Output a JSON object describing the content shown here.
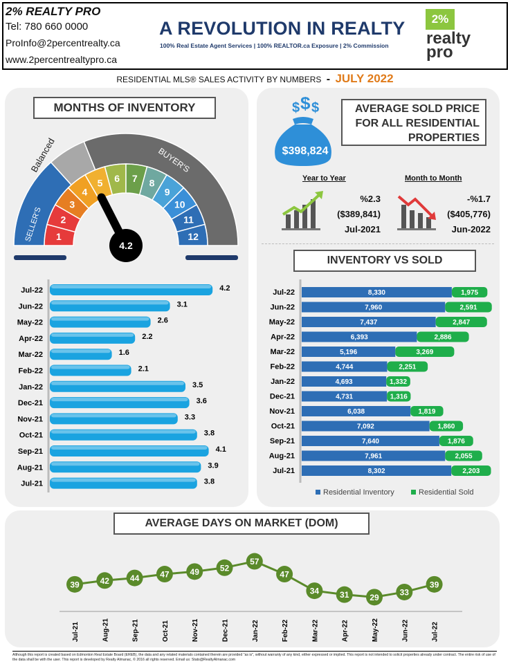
{
  "header": {
    "company": "2% REALTY PRO",
    "phone": "Tel: 780 660 0000",
    "email": "ProInfo@2percentrealty.ca",
    "website": "www.2percentrealtypro.ca",
    "headline": "A REVOLUTION IN REALTY",
    "tagline": "100% Real Estate Agent Services | 100% REALTOR.ca Exposure | 2% Commission",
    "logo_top": "2%",
    "logo_mid": "realty",
    "logo_bot": "pro"
  },
  "subtitle": {
    "text": "RESIDENTIAL MLS® SALES ACTIVITY BY NUMBERS",
    "sep": "-",
    "month": "JULY 2022"
  },
  "months_inventory": {
    "title": "MONTHS OF INVENTORY",
    "gauge_value": "4.2",
    "label_balanced": "Balanced",
    "label_buyers": "BUYER'S",
    "label_sellers": "SELLER'S",
    "segment_numbers": [
      "1",
      "2",
      "3",
      "4",
      "5",
      "6",
      "7",
      "8",
      "9",
      "10",
      "11",
      "12"
    ]
  },
  "avg_price": {
    "title_lines": [
      "AVERAGE  SOLD PRICE",
      "FOR ALL RESIDENTIAL",
      "PROPERTIES"
    ],
    "value": "$398,824",
    "yoy": {
      "label": "Year to Year",
      "pct": "%2.3",
      "prev": "($389,841)",
      "period": "Jul-2021"
    },
    "mom": {
      "label": "Month to Month",
      "pct": "-%1.7",
      "prev": "($405,776)",
      "period": "Jun-2022"
    }
  },
  "inv_sold_title": "INVENTORY VS SOLD",
  "dom_title": "AVERAGE DAYS ON MARKET (DOM)",
  "colors": {
    "navy": "#1f3a6b",
    "orange": "#e07b1a",
    "moi_bar": "#1aa3e0",
    "inventory": "#2e6eb5",
    "sold": "#1fae4b",
    "dom": "#5a8a2a"
  },
  "chart_data": [
    {
      "type": "bar",
      "orientation": "horizontal",
      "categories": [
        "Jul-22",
        "Jun-22",
        "May-22",
        "Apr-22",
        "Mar-22",
        "Feb-22",
        "Jan-22",
        "Dec-21",
        "Nov-21",
        "Oct-21",
        "Sep-21",
        "Aug-21",
        "Jul-21"
      ],
      "values": [
        4.2,
        3.1,
        2.6,
        2.2,
        1.6,
        2.1,
        3.5,
        3.6,
        3.3,
        3.8,
        4.1,
        3.9,
        3.8
      ],
      "labels": [
        "4.2",
        "3.1",
        "2.6",
        "2.2",
        "1.6",
        "2.1",
        "3.5",
        "3.6",
        "3.3",
        "3.8",
        "4.1",
        "3.9",
        "3.8"
      ],
      "xlim": [
        0,
        5
      ]
    },
    {
      "type": "bar",
      "orientation": "horizontal",
      "stacked": true,
      "categories": [
        "Jul-22",
        "Jun-22",
        "May-22",
        "Apr-22",
        "Mar-22",
        "Feb-22",
        "Jan-22",
        "Dec-21",
        "Nov-21",
        "Oct-21",
        "Sep-21",
        "Aug-21",
        "Jul-21"
      ],
      "series": [
        {
          "name": "Residential Inventory",
          "values": [
            8330,
            7960,
            7437,
            6393,
            5196,
            4744,
            4693,
            4731,
            6038,
            7092,
            7640,
            7961,
            8302
          ],
          "labels": [
            "8,330",
            "7,960",
            "7,437",
            "6,393",
            "5,196",
            "4,744",
            "4,693",
            "4,731",
            "6,038",
            "7,092",
            "7,640",
            "7,961",
            "8,302"
          ]
        },
        {
          "name": "Residential Sold",
          "values": [
            1975,
            2591,
            2847,
            2886,
            3269,
            2251,
            1332,
            1316,
            1819,
            1860,
            1876,
            2055,
            2203
          ],
          "labels": [
            "1,975",
            "2,591",
            "2,847",
            "2,886",
            "3,269",
            "2,251",
            "1,332",
            "1,316",
            "1,819",
            "1,860",
            "1,876",
            "2,055",
            "2,203"
          ]
        }
      ],
      "legend": "bottom",
      "xlim": [
        0,
        10600
      ]
    },
    {
      "type": "line",
      "categories": [
        "Jul-21",
        "Aug-21",
        "Sep-21",
        "Oct-21",
        "Nov-21",
        "Dec-21",
        "Jan-22",
        "Feb-22",
        "Mar-22",
        "Apr-22",
        "May-22",
        "Jun-22",
        "Jul-22"
      ],
      "values": [
        39,
        42,
        44,
        47,
        49,
        52,
        57,
        47,
        34,
        31,
        29,
        33,
        39
      ],
      "labels": [
        "39",
        "42",
        "44",
        "47",
        "49",
        "52",
        "57",
        "47",
        "34",
        "31",
        "29",
        "33",
        "39"
      ],
      "ylim": [
        20,
        60
      ]
    }
  ],
  "footer": "Although this report is created based on Edmonton Real Estate Board (EREB), the data and any related materials contained therein are provided \"as is\", without warranty of any kind, either expressed or implied.  This report is not intended to solicit properties already under contract.  The entire risk of use of the data shall be with the user.  This report is developed by Realty Almanac, © 2016 all rights reserved. Email us: Stats@RealtyAlmanac.com"
}
